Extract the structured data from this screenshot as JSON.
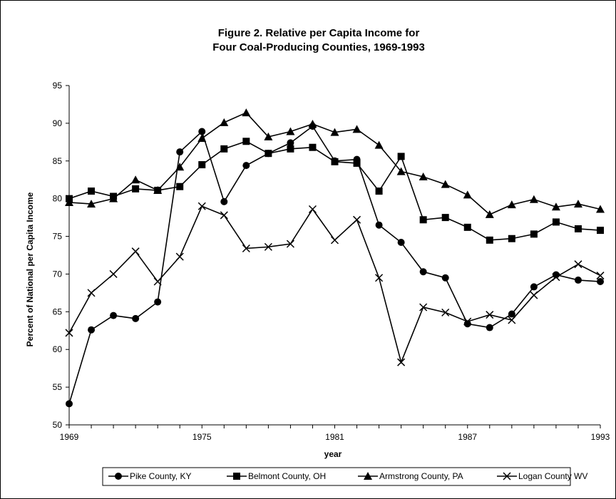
{
  "chart_data": {
    "type": "line",
    "title": "Figure 2. Relative per Capita Income for",
    "subtitle": "Four Coal-Producing Counties, 1969-1993",
    "xlabel": "year",
    "ylabel": "Percent of National per Capita Income",
    "xlim": [
      1969,
      1993
    ],
    "ylim": [
      50,
      95
    ],
    "x_tick_labels": [
      "1969",
      "1975",
      "1981",
      "1987",
      "1993"
    ],
    "y_tick_labels": [
      "50",
      "55",
      "60",
      "65",
      "70",
      "75",
      "80",
      "85",
      "90",
      "95"
    ],
    "grid": false,
    "legend_position": "bottom",
    "x": [
      1969,
      1970,
      1971,
      1972,
      1973,
      1974,
      1975,
      1976,
      1977,
      1978,
      1979,
      1980,
      1981,
      1982,
      1983,
      1984,
      1985,
      1986,
      1987,
      1988,
      1989,
      1990,
      1991,
      1992,
      1993
    ],
    "series": [
      {
        "name": "Pike County, KY",
        "marker": "circle",
        "values": [
          52.8,
          62.6,
          64.5,
          64.1,
          66.3,
          86.2,
          88.9,
          79.6,
          84.4,
          86.0,
          87.4,
          89.6,
          85.0,
          85.2,
          76.5,
          74.2,
          70.3,
          69.5,
          63.4,
          62.9,
          64.7,
          68.3,
          69.9,
          69.2,
          69.0
        ]
      },
      {
        "name": "Belmont County, OH",
        "marker": "square",
        "values": [
          80.0,
          81.0,
          80.3,
          81.3,
          81.1,
          81.6,
          84.5,
          86.6,
          87.6,
          86.0,
          86.6,
          86.8,
          84.9,
          84.7,
          81.0,
          85.6,
          77.2,
          77.5,
          76.2,
          74.5,
          74.7,
          75.3,
          76.9,
          76.0,
          75.8
        ]
      },
      {
        "name": "Armstrong County, PA",
        "marker": "triangle",
        "values": [
          79.5,
          79.3,
          80.0,
          82.5,
          81.1,
          84.2,
          88.0,
          90.1,
          91.4,
          88.2,
          88.9,
          89.9,
          88.8,
          89.2,
          87.1,
          83.6,
          82.9,
          81.9,
          80.5,
          77.9,
          79.2,
          79.9,
          78.9,
          79.3,
          78.6
        ]
      },
      {
        "name": "Logan County WV",
        "marker": "x",
        "values": [
          62.2,
          67.5,
          70.0,
          73.0,
          69.0,
          72.3,
          79.0,
          77.8,
          73.4,
          73.6,
          74.0,
          78.6,
          74.5,
          77.2,
          69.5,
          58.3,
          65.6,
          64.9,
          63.7,
          64.6,
          63.9,
          67.2,
          69.6,
          71.3,
          69.8
        ]
      }
    ]
  }
}
